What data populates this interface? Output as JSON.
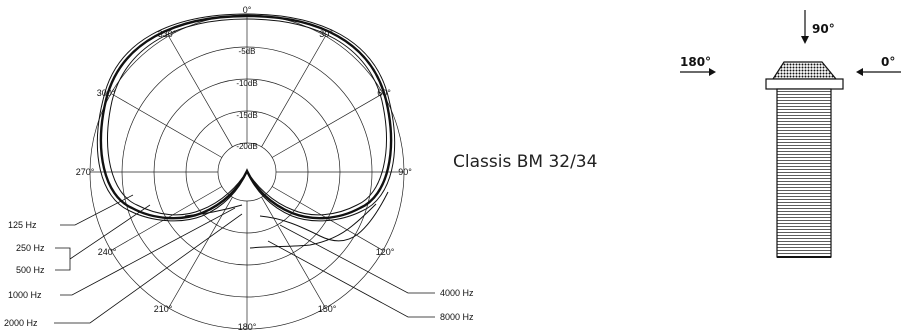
{
  "title": "Classis BM 32/34",
  "polar": {
    "angle_labels": [
      "0°",
      "30°",
      "60°",
      "90°",
      "120°",
      "150°",
      "180°",
      "210°",
      "240°",
      "270°",
      "300°",
      "330°"
    ],
    "db_labels": [
      "-5dB",
      "-10dB",
      "-15dB",
      "-20dB"
    ]
  },
  "legend": {
    "left": [
      "125 Hz",
      "250 Hz",
      "500 Hz",
      "1000 Hz",
      "2000 Hz"
    ],
    "right": [
      "4000 Hz",
      "8000 Hz"
    ]
  },
  "mic": {
    "label_top": "90°",
    "label_left": "180°",
    "label_right": "0°"
  }
}
